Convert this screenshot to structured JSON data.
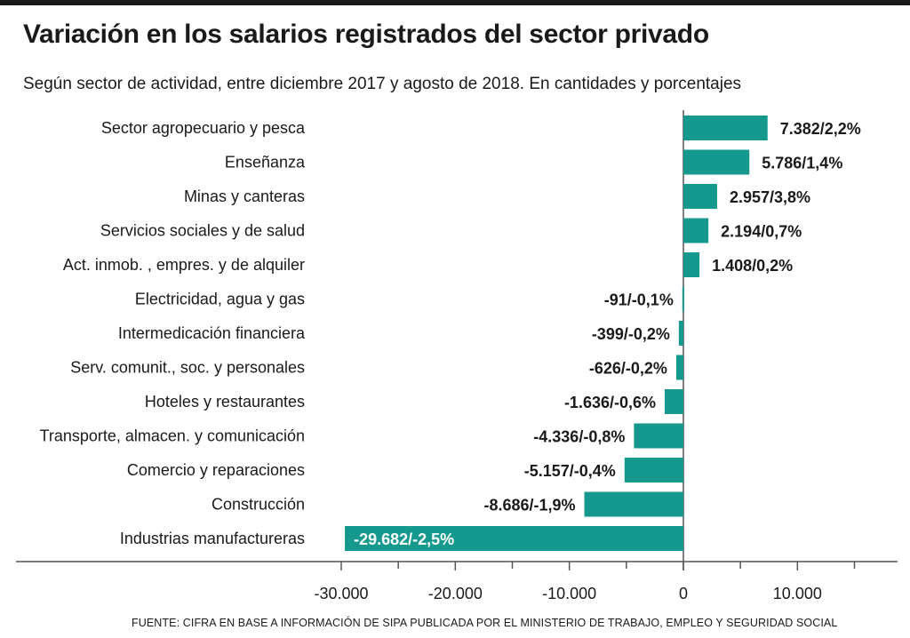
{
  "header": {
    "title": "Variación en los salarios registrados del sector privado",
    "subtitle": "Según sector de actividad, entre diciembre 2017 y agosto de 2018. En cantidades y porcentajes"
  },
  "footer": {
    "source": "FUENTE: CIFRA EN BASE A INFORMACIÓN DE SIPA PUBLICADA POR EL MINISTERIO DE TRABAJO, EMPLEO Y SEGURIDAD SOCIAL"
  },
  "colors": {
    "bar": "#15998f",
    "axis": "#555555"
  },
  "chart_data": {
    "type": "bar",
    "orientation": "horizontal",
    "categories": [
      "Sector agropecuario y pesca",
      "Enseñanza",
      "Minas y canteras",
      "Servicios sociales y de salud",
      "Act. inmob. , empres. y de alquiler",
      "Electricidad, agua y gas",
      "Intermedicación financiera",
      "Serv. comunit., soc. y personales",
      "Hoteles y restaurantes",
      "Transporte, almacen. y comunicación",
      "Comercio y reparaciones",
      "Construcción",
      "Industrias manufactureras"
    ],
    "values": [
      7382,
      5786,
      2957,
      2194,
      1408,
      -91,
      -399,
      -626,
      -1636,
      -4336,
      -5157,
      -8686,
      -29682
    ],
    "data_labels": [
      "7.382/2,2%",
      "5.786/1,4%",
      "2.957/3,8%",
      "2.194/0,7%",
      "1.408/0,2%",
      "-91/-0,1%",
      "-399/-0,2%",
      "-626/-0,2%",
      "-1.636/-0,6%",
      "-4.336/-0,8%",
      "-5.157/-0,4%",
      "-8.686/-1,9%",
      "-29.682/-2,5%"
    ],
    "xlim": [
      -30000,
      15000
    ],
    "x_ticks": [
      -30000,
      -20000,
      -10000,
      0,
      10000
    ],
    "x_tick_labels": [
      "-30.000",
      "-20.000",
      "-10.000",
      "0",
      "10.000"
    ],
    "title": "Variación en los salarios registrados del sector privado",
    "xlabel": "",
    "ylabel": "",
    "grid": false,
    "legend": "none"
  }
}
